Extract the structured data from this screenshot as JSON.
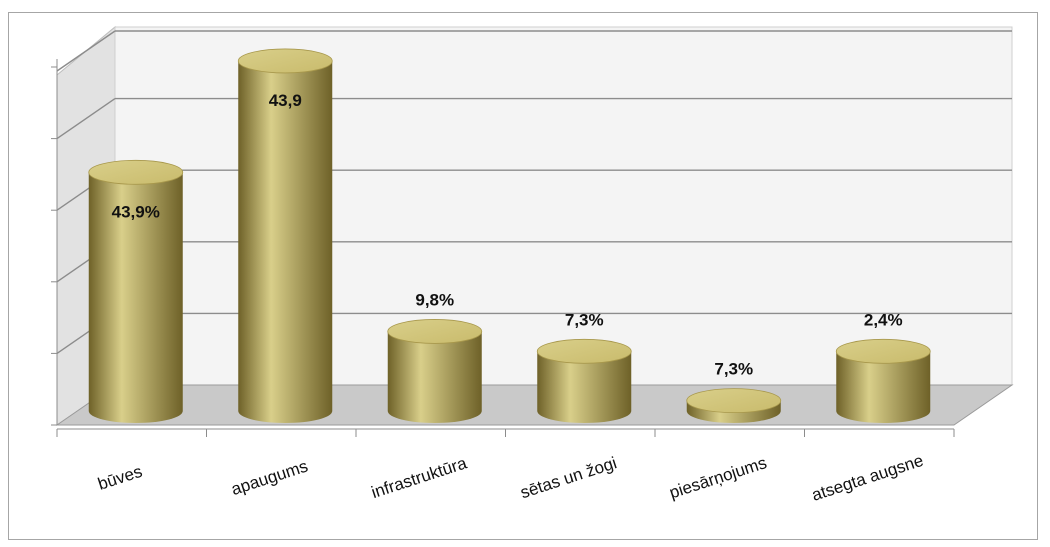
{
  "chart_data": {
    "type": "bar",
    "style": "3d-cylinder",
    "categories": [
      "būves",
      "apaugums",
      "infrastruktūra",
      "sētas un žogi",
      "piesārņojums",
      "atsegta augsne"
    ],
    "values": [
      43.9,
      43.9,
      9.8,
      7.3,
      7.3,
      2.4
    ],
    "data_labels": [
      "43,9%",
      "43,9",
      "9,8%",
      "7,3%",
      "7,3%",
      "2,4%"
    ],
    "bar_heights_rendered": [
      30,
      44,
      10,
      7.5,
      1.3,
      7.5
    ],
    "ylim": [
      0,
      45
    ],
    "y_tick_labels_visible": false,
    "grid": true,
    "legend": "none",
    "colors": {
      "bar_light": "#d9cf8a",
      "bar_mid": "#b8a85a",
      "bar_dark": "#6e6128",
      "bar_top": "#c9bb6c",
      "back_wall": "#f4f4f4",
      "side_wall": "#e2e2e2",
      "floor": "#c9c9c9",
      "gridline": "#8c8c8c"
    }
  }
}
